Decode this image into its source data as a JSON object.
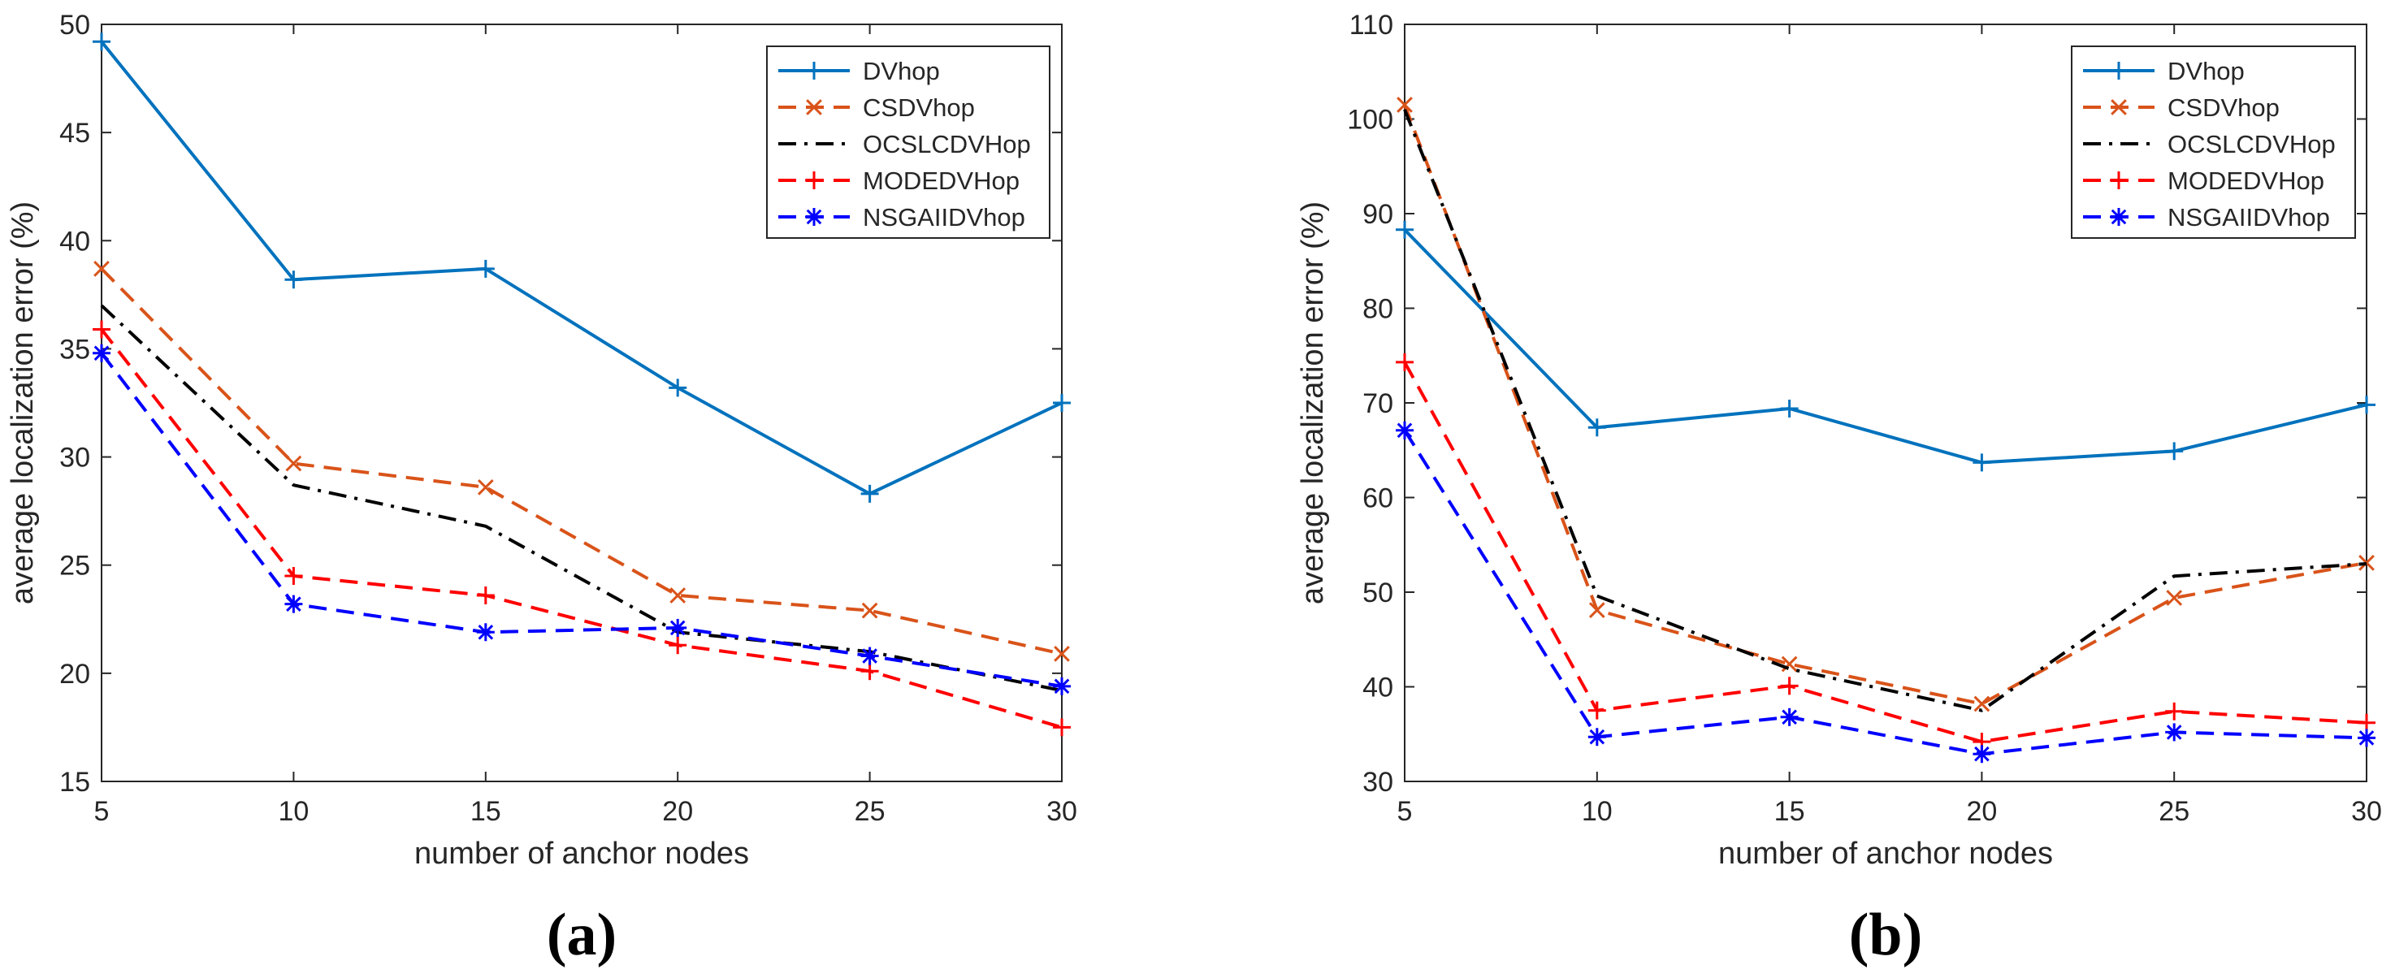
{
  "chart_data": [
    {
      "type": "line",
      "panel_label": "(a)",
      "title": "",
      "xlabel": "number of anchor nodes",
      "ylabel": "average localization error (%)",
      "x": [
        5,
        10,
        15,
        20,
        25,
        30
      ],
      "xlim": [
        5,
        30
      ],
      "ylim": [
        15,
        50
      ],
      "xticks": [
        "5",
        "10",
        "15",
        "20",
        "25",
        "30"
      ],
      "yticks": [
        "15",
        "20",
        "25",
        "30",
        "35",
        "40",
        "45",
        "50"
      ],
      "xtick_values": [
        5,
        10,
        15,
        20,
        25,
        30
      ],
      "ytick_values": [
        15,
        20,
        25,
        30,
        35,
        40,
        45,
        50
      ],
      "grid": false,
      "legend_position": "top-right",
      "series": [
        {
          "name": "DVhop",
          "color": "#0072BD",
          "dash": "solid",
          "marker": "plus",
          "values": [
            49.2,
            38.2,
            38.7,
            33.2,
            28.3,
            32.5
          ]
        },
        {
          "name": "CSDVhop",
          "color": "#D95319",
          "dash": "dashed",
          "marker": "x",
          "values": [
            38.7,
            29.7,
            28.6,
            23.6,
            22.9,
            20.9
          ]
        },
        {
          "name": "OCSLCDVHop",
          "color": "#000000",
          "dash": "dashdot",
          "marker": "none",
          "values": [
            37.0,
            28.7,
            26.8,
            21.9,
            21.0,
            19.2
          ]
        },
        {
          "name": "MODEDVHop",
          "color": "#FF0000",
          "dash": "dashed",
          "marker": "plus",
          "values": [
            35.9,
            24.5,
            23.6,
            21.3,
            20.1,
            17.5
          ]
        },
        {
          "name": "NSGAIIDVhop",
          "color": "#0000FF",
          "dash": "dashed",
          "marker": "star",
          "values": [
            34.8,
            23.2,
            21.9,
            22.1,
            20.8,
            19.4
          ]
        }
      ]
    },
    {
      "type": "line",
      "panel_label": "(b)",
      "title": "",
      "xlabel": "number of anchor nodes",
      "ylabel": "average localization error (%)",
      "x": [
        5,
        10,
        15,
        20,
        25,
        30
      ],
      "xlim": [
        5,
        30
      ],
      "ylim": [
        30,
        110
      ],
      "xticks": [
        "5",
        "10",
        "15",
        "20",
        "25",
        "30"
      ],
      "yticks": [
        "30",
        "40",
        "50",
        "60",
        "70",
        "80",
        "90",
        "100",
        "110"
      ],
      "xtick_values": [
        5,
        10,
        15,
        20,
        25,
        30
      ],
      "ytick_values": [
        30,
        40,
        50,
        60,
        70,
        80,
        90,
        100,
        110
      ],
      "grid": false,
      "legend_position": "top-right",
      "series": [
        {
          "name": "DVhop",
          "color": "#0072BD",
          "dash": "solid",
          "marker": "plus",
          "values": [
            88.3,
            67.4,
            69.4,
            63.7,
            64.9,
            69.8
          ]
        },
        {
          "name": "CSDVhop",
          "color": "#D95319",
          "dash": "dashed",
          "marker": "x",
          "values": [
            101.5,
            48.1,
            42.4,
            38.2,
            49.4,
            53.1
          ]
        },
        {
          "name": "OCSLCDVHop",
          "color": "#000000",
          "dash": "dashdot",
          "marker": "none",
          "values": [
            101.0,
            49.6,
            41.9,
            37.5,
            51.7,
            53.0
          ]
        },
        {
          "name": "MODEDVHop",
          "color": "#FF0000",
          "dash": "dashed",
          "marker": "plus",
          "values": [
            74.3,
            37.5,
            40.1,
            34.2,
            37.4,
            36.2
          ]
        },
        {
          "name": "NSGAIIDVhop",
          "color": "#0000FF",
          "dash": "dashed",
          "marker": "star",
          "values": [
            67.1,
            34.7,
            36.8,
            32.9,
            35.2,
            34.6
          ]
        }
      ]
    }
  ]
}
